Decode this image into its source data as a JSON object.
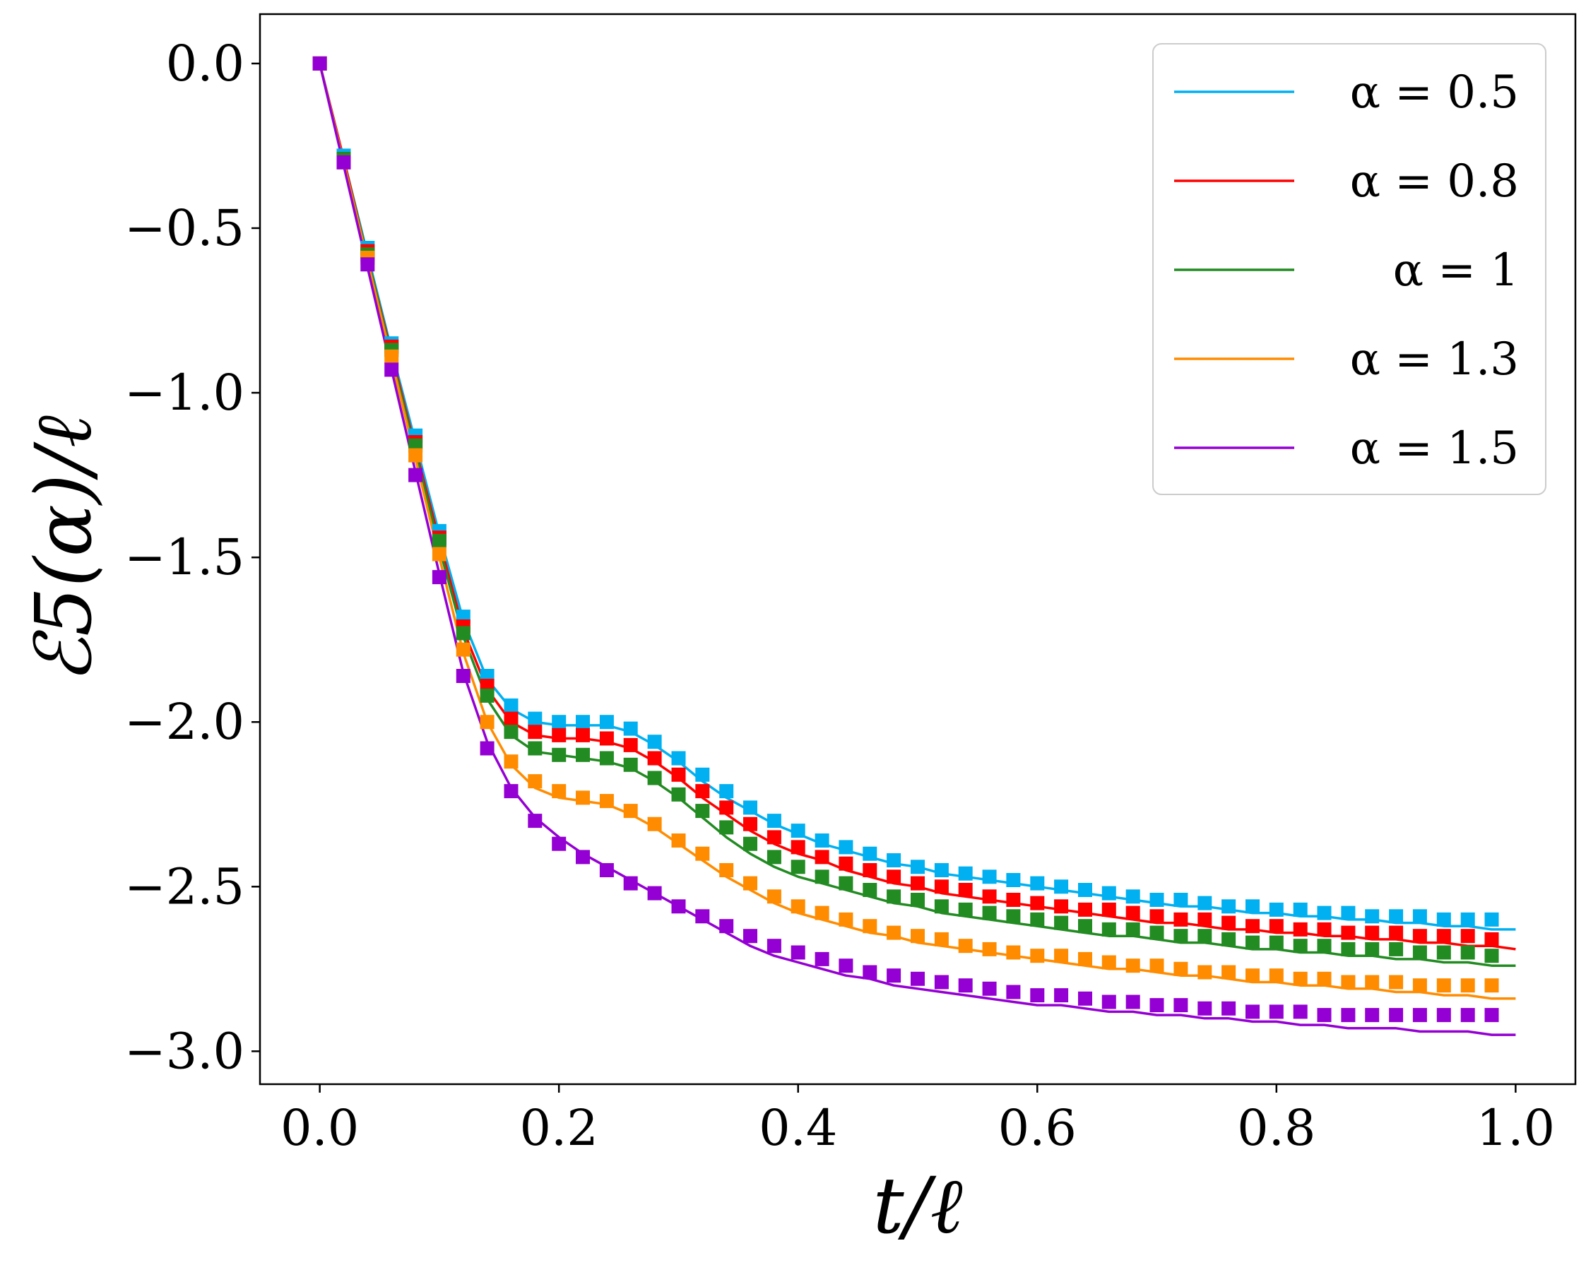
{
  "chart_data": {
    "type": "line",
    "xlabel": "t/ℓ",
    "ylabel": "ℰ5(α)/ℓ",
    "xlim": [
      -0.05,
      1.05
    ],
    "ylim": [
      -3.1,
      0.15
    ],
    "xticks": [
      0.0,
      0.2,
      0.4,
      0.6,
      0.8,
      1.0
    ],
    "xtick_labels": [
      "0.0",
      "0.2",
      "0.4",
      "0.6",
      "0.8",
      "1.0"
    ],
    "yticks": [
      0.0,
      -0.5,
      -1.0,
      -1.5,
      -2.0,
      -2.5,
      -3.0
    ],
    "ytick_labels": [
      "0.0",
      "−0.5",
      "−1.0",
      "−1.5",
      "−2.0",
      "−2.5",
      "−3.0"
    ],
    "grid": false,
    "legend_position": "top-right",
    "line_x": [
      0,
      0.02,
      0.04,
      0.06,
      0.08,
      0.1,
      0.12,
      0.14,
      0.16,
      0.18,
      0.2,
      0.22,
      0.24,
      0.26,
      0.28,
      0.3,
      0.32,
      0.34,
      0.36,
      0.38,
      0.4,
      0.42,
      0.44,
      0.46,
      0.48,
      0.5,
      0.52,
      0.54,
      0.56,
      0.58,
      0.6,
      0.62,
      0.64,
      0.66,
      0.68,
      0.7,
      0.72,
      0.74,
      0.76,
      0.78,
      0.8,
      0.82,
      0.84,
      0.86,
      0.88,
      0.9,
      0.92,
      0.94,
      0.96,
      0.98,
      1.0
    ],
    "marker_x": [
      0,
      0.02,
      0.04,
      0.06,
      0.08,
      0.1,
      0.12,
      0.14,
      0.16,
      0.18,
      0.2,
      0.22,
      0.24,
      0.26,
      0.28,
      0.3,
      0.32,
      0.34,
      0.36,
      0.38,
      0.4,
      0.42,
      0.44,
      0.46,
      0.48,
      0.5,
      0.52,
      0.54,
      0.56,
      0.58,
      0.6,
      0.62,
      0.64,
      0.66,
      0.68,
      0.7,
      0.72,
      0.74,
      0.76,
      0.78,
      0.8,
      0.82,
      0.84,
      0.86,
      0.88,
      0.9,
      0.92,
      0.94,
      0.96,
      0.98
    ],
    "series": [
      {
        "name": "α = 0.5",
        "color": "#00b0f0",
        "line_y": [
          0,
          -0.29,
          -0.58,
          -0.87,
          -1.15,
          -1.43,
          -1.69,
          -1.87,
          -1.96,
          -2.0,
          -2.01,
          -2.01,
          -2.01,
          -2.03,
          -2.07,
          -2.12,
          -2.18,
          -2.23,
          -2.27,
          -2.31,
          -2.34,
          -2.37,
          -2.39,
          -2.41,
          -2.43,
          -2.44,
          -2.46,
          -2.47,
          -2.48,
          -2.49,
          -2.5,
          -2.51,
          -2.52,
          -2.53,
          -2.54,
          -2.55,
          -2.56,
          -2.56,
          -2.57,
          -2.58,
          -2.58,
          -2.59,
          -2.59,
          -2.6,
          -2.6,
          -2.61,
          -2.61,
          -2.62,
          -2.62,
          -2.63,
          -2.63
        ],
        "marker_y": [
          0,
          -0.28,
          -0.56,
          -0.85,
          -1.13,
          -1.42,
          -1.68,
          -1.86,
          -1.95,
          -1.99,
          -2.0,
          -2.0,
          -2.0,
          -2.02,
          -2.06,
          -2.11,
          -2.16,
          -2.21,
          -2.26,
          -2.3,
          -2.33,
          -2.36,
          -2.38,
          -2.4,
          -2.42,
          -2.44,
          -2.45,
          -2.46,
          -2.47,
          -2.48,
          -2.49,
          -2.5,
          -2.51,
          -2.52,
          -2.53,
          -2.54,
          -2.54,
          -2.55,
          -2.56,
          -2.56,
          -2.57,
          -2.57,
          -2.58,
          -2.58,
          -2.59,
          -2.59,
          -2.59,
          -2.6,
          -2.6,
          -2.6
        ]
      },
      {
        "name": "α = 0.8",
        "color": "#ff0000",
        "line_y": [
          0,
          -0.29,
          -0.59,
          -0.88,
          -1.17,
          -1.45,
          -1.72,
          -1.9,
          -2.0,
          -2.04,
          -2.05,
          -2.05,
          -2.06,
          -2.08,
          -2.12,
          -2.17,
          -2.23,
          -2.28,
          -2.33,
          -2.37,
          -2.4,
          -2.42,
          -2.45,
          -2.47,
          -2.49,
          -2.5,
          -2.52,
          -2.53,
          -2.54,
          -2.55,
          -2.56,
          -2.57,
          -2.58,
          -2.59,
          -2.6,
          -2.61,
          -2.61,
          -2.62,
          -2.63,
          -2.63,
          -2.64,
          -2.64,
          -2.65,
          -2.65,
          -2.66,
          -2.66,
          -2.67,
          -2.67,
          -2.68,
          -2.68,
          -2.69
        ],
        "marker_y": [
          0,
          -0.29,
          -0.57,
          -0.86,
          -1.15,
          -1.44,
          -1.71,
          -1.89,
          -1.99,
          -2.03,
          -2.04,
          -2.04,
          -2.05,
          -2.07,
          -2.11,
          -2.16,
          -2.21,
          -2.26,
          -2.31,
          -2.35,
          -2.38,
          -2.41,
          -2.43,
          -2.45,
          -2.47,
          -2.49,
          -2.5,
          -2.51,
          -2.53,
          -2.54,
          -2.55,
          -2.56,
          -2.57,
          -2.57,
          -2.58,
          -2.59,
          -2.6,
          -2.6,
          -2.61,
          -2.62,
          -2.62,
          -2.63,
          -2.63,
          -2.64,
          -2.64,
          -2.64,
          -2.65,
          -2.65,
          -2.65,
          -2.66
        ]
      },
      {
        "name": "α = 1",
        "color": "#228b22",
        "line_y": [
          0,
          -0.3,
          -0.59,
          -0.89,
          -1.18,
          -1.47,
          -1.74,
          -1.93,
          -2.04,
          -2.09,
          -2.1,
          -2.11,
          -2.12,
          -2.14,
          -2.18,
          -2.23,
          -2.29,
          -2.35,
          -2.4,
          -2.44,
          -2.47,
          -2.49,
          -2.51,
          -2.53,
          -2.55,
          -2.56,
          -2.58,
          -2.59,
          -2.6,
          -2.61,
          -2.62,
          -2.63,
          -2.64,
          -2.65,
          -2.65,
          -2.66,
          -2.67,
          -2.67,
          -2.68,
          -2.69,
          -2.69,
          -2.7,
          -2.7,
          -2.71,
          -2.71,
          -2.72,
          -2.72,
          -2.73,
          -2.73,
          -2.74,
          -2.74
        ],
        "marker_y": [
          0,
          -0.29,
          -0.58,
          -0.87,
          -1.16,
          -1.45,
          -1.73,
          -1.92,
          -2.03,
          -2.08,
          -2.1,
          -2.1,
          -2.11,
          -2.13,
          -2.17,
          -2.22,
          -2.27,
          -2.32,
          -2.37,
          -2.41,
          -2.44,
          -2.47,
          -2.49,
          -2.51,
          -2.53,
          -2.54,
          -2.56,
          -2.57,
          -2.58,
          -2.59,
          -2.6,
          -2.61,
          -2.62,
          -2.63,
          -2.63,
          -2.64,
          -2.65,
          -2.65,
          -2.66,
          -2.67,
          -2.67,
          -2.68,
          -2.68,
          -2.69,
          -2.69,
          -2.69,
          -2.7,
          -2.7,
          -2.7,
          -2.71
        ]
      },
      {
        "name": "α = 1.3",
        "color": "#ff8c00",
        "line_y": [
          0,
          -0.3,
          -0.6,
          -0.9,
          -1.2,
          -1.5,
          -1.79,
          -2.0,
          -2.13,
          -2.2,
          -2.23,
          -2.24,
          -2.25,
          -2.28,
          -2.32,
          -2.37,
          -2.42,
          -2.47,
          -2.51,
          -2.55,
          -2.58,
          -2.6,
          -2.62,
          -2.64,
          -2.65,
          -2.67,
          -2.68,
          -2.69,
          -2.7,
          -2.71,
          -2.72,
          -2.73,
          -2.74,
          -2.75,
          -2.75,
          -2.76,
          -2.77,
          -2.77,
          -2.78,
          -2.79,
          -2.79,
          -2.8,
          -2.8,
          -2.81,
          -2.81,
          -2.82,
          -2.82,
          -2.83,
          -2.83,
          -2.84,
          -2.84
        ],
        "marker_y": [
          0,
          -0.3,
          -0.59,
          -0.89,
          -1.19,
          -1.49,
          -1.78,
          -2.0,
          -2.12,
          -2.18,
          -2.21,
          -2.23,
          -2.24,
          -2.27,
          -2.31,
          -2.36,
          -2.4,
          -2.45,
          -2.49,
          -2.53,
          -2.56,
          -2.58,
          -2.6,
          -2.62,
          -2.64,
          -2.65,
          -2.66,
          -2.68,
          -2.69,
          -2.7,
          -2.71,
          -2.71,
          -2.72,
          -2.73,
          -2.74,
          -2.74,
          -2.75,
          -2.76,
          -2.76,
          -2.77,
          -2.77,
          -2.78,
          -2.78,
          -2.79,
          -2.79,
          -2.79,
          -2.8,
          -2.8,
          -2.8,
          -2.8
        ]
      },
      {
        "name": "α = 1.5",
        "color": "#9400d3",
        "line_y": [
          0,
          -0.31,
          -0.62,
          -0.93,
          -1.24,
          -1.55,
          -1.85,
          -2.06,
          -2.2,
          -2.29,
          -2.35,
          -2.4,
          -2.44,
          -2.48,
          -2.52,
          -2.56,
          -2.6,
          -2.64,
          -2.68,
          -2.71,
          -2.73,
          -2.75,
          -2.77,
          -2.78,
          -2.8,
          -2.81,
          -2.82,
          -2.83,
          -2.84,
          -2.85,
          -2.86,
          -2.86,
          -2.87,
          -2.88,
          -2.88,
          -2.89,
          -2.89,
          -2.9,
          -2.9,
          -2.91,
          -2.91,
          -2.92,
          -2.92,
          -2.93,
          -2.93,
          -2.93,
          -2.94,
          -2.94,
          -2.94,
          -2.95,
          -2.95
        ],
        "marker_y": [
          0,
          -0.3,
          -0.61,
          -0.93,
          -1.25,
          -1.56,
          -1.86,
          -2.08,
          -2.21,
          -2.3,
          -2.37,
          -2.41,
          -2.45,
          -2.49,
          -2.52,
          -2.56,
          -2.59,
          -2.62,
          -2.65,
          -2.68,
          -2.7,
          -2.72,
          -2.74,
          -2.76,
          -2.77,
          -2.78,
          -2.79,
          -2.8,
          -2.81,
          -2.82,
          -2.83,
          -2.83,
          -2.84,
          -2.85,
          -2.85,
          -2.86,
          -2.86,
          -2.87,
          -2.87,
          -2.88,
          -2.88,
          -2.88,
          -2.89,
          -2.89,
          -2.89,
          -2.89,
          -2.89,
          -2.89,
          -2.89,
          -2.89
        ]
      }
    ]
  }
}
